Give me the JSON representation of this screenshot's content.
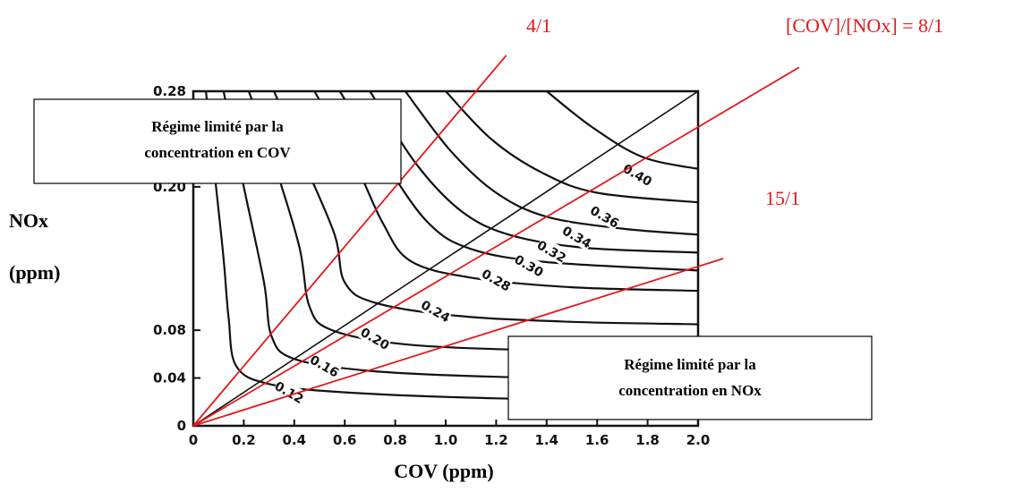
{
  "chart_data": {
    "type": "contour",
    "xlabel": "COV (ppm)",
    "ylabel_line1": "NOx",
    "ylabel_line2": "(ppm)",
    "xlim": [
      0,
      2.0
    ],
    "ylim": [
      0,
      0.28
    ],
    "x_ticks": [
      "0",
      "0.2",
      "0.4",
      "0.6",
      "0.8",
      "1.0",
      "1.2",
      "1.4",
      "1.6",
      "1.8",
      "2.0"
    ],
    "y_ticks": [
      {
        "value": 0,
        "label": "0"
      },
      {
        "value": 0.04,
        "label": "0.04"
      },
      {
        "value": 0.08,
        "label": "0.08"
      },
      {
        "value": 0.2,
        "label": "0.20"
      },
      {
        "value": 0.28,
        "label": "0.28"
      }
    ],
    "contours": [
      {
        "level": 0.12,
        "label": "0.12",
        "label_at": [
          0.38,
          0.028
        ],
        "points": [
          [
            0.05,
            0.28
          ],
          [
            0.09,
            0.2
          ],
          [
            0.12,
            0.14
          ],
          [
            0.14,
            0.09
          ],
          [
            0.17,
            0.05
          ],
          [
            0.3,
            0.035
          ],
          [
            0.6,
            0.028
          ],
          [
            1.2,
            0.023
          ],
          [
            2.0,
            0.021
          ]
        ]
      },
      {
        "level": 0.16,
        "label": "0.16",
        "label_at": [
          0.52,
          0.05
        ],
        "points": [
          [
            0.12,
            0.28
          ],
          [
            0.2,
            0.2
          ],
          [
            0.28,
            0.12
          ],
          [
            0.31,
            0.075
          ],
          [
            0.4,
            0.056
          ],
          [
            0.7,
            0.046
          ],
          [
            1.2,
            0.041
          ],
          [
            2.0,
            0.038
          ]
        ]
      },
      {
        "level": 0.2,
        "label": "0.20",
        "label_at": [
          0.72,
          0.073
        ],
        "points": [
          [
            0.22,
            0.28
          ],
          [
            0.32,
            0.22
          ],
          [
            0.42,
            0.15
          ],
          [
            0.46,
            0.1
          ],
          [
            0.55,
            0.08
          ],
          [
            0.85,
            0.068
          ],
          [
            1.4,
            0.063
          ],
          [
            2.0,
            0.061
          ]
        ]
      },
      {
        "level": 0.24,
        "label": "0.24",
        "label_at": [
          0.96,
          0.096
        ],
        "points": [
          [
            0.32,
            0.28
          ],
          [
            0.44,
            0.22
          ],
          [
            0.56,
            0.16
          ],
          [
            0.6,
            0.12
          ],
          [
            0.72,
            0.103
          ],
          [
            1.05,
            0.092
          ],
          [
            1.5,
            0.087
          ],
          [
            2.0,
            0.085
          ]
        ]
      },
      {
        "level": 0.28,
        "label": "0.28",
        "label_at": [
          1.2,
          0.122
        ],
        "points": [
          [
            0.48,
            0.28
          ],
          [
            0.64,
            0.22
          ],
          [
            0.75,
            0.17
          ],
          [
            0.86,
            0.138
          ],
          [
            1.1,
            0.124
          ],
          [
            1.5,
            0.116
          ],
          [
            2.0,
            0.113
          ]
        ]
      },
      {
        "level": 0.3,
        "label": "0.30",
        "label_at": [
          1.33,
          0.134
        ],
        "points": [
          [
            0.58,
            0.28
          ],
          [
            0.76,
            0.22
          ],
          [
            0.93,
            0.17
          ],
          [
            1.1,
            0.148
          ],
          [
            1.4,
            0.137
          ],
          [
            2.0,
            0.13
          ]
        ]
      },
      {
        "level": 0.32,
        "label": "0.32",
        "label_at": [
          1.42,
          0.146
        ],
        "points": [
          [
            0.7,
            0.28
          ],
          [
            0.88,
            0.22
          ],
          [
            1.06,
            0.18
          ],
          [
            1.25,
            0.16
          ],
          [
            1.55,
            0.149
          ],
          [
            2.0,
            0.145
          ]
        ]
      },
      {
        "level": 0.34,
        "label": "0.34",
        "label_at": [
          1.52,
          0.158
        ],
        "points": [
          [
            0.84,
            0.28
          ],
          [
            1.02,
            0.23
          ],
          [
            1.2,
            0.195
          ],
          [
            1.4,
            0.175
          ],
          [
            1.7,
            0.165
          ],
          [
            2.0,
            0.16
          ]
        ]
      },
      {
        "level": 0.36,
        "label": "0.36",
        "label_at": [
          1.63,
          0.175
        ],
        "points": [
          [
            1.0,
            0.28
          ],
          [
            1.18,
            0.24
          ],
          [
            1.38,
            0.212
          ],
          [
            1.6,
            0.195
          ],
          [
            2.0,
            0.187
          ]
        ]
      },
      {
        "level": 0.4,
        "label": "0.40",
        "label_at": [
          1.76,
          0.21
        ],
        "points": [
          [
            1.4,
            0.28
          ],
          [
            1.58,
            0.25
          ],
          [
            1.78,
            0.225
          ],
          [
            2.0,
            0.215
          ]
        ]
      }
    ],
    "ratio_lines": [
      {
        "label": "4/1",
        "points": [
          [
            0,
            0
          ],
          [
            1.24,
            0.31
          ]
        ]
      },
      {
        "label": "[COV]/[NOx] = 8/1",
        "points": [
          [
            0,
            0
          ],
          [
            2.4,
            0.3
          ]
        ]
      },
      {
        "label": "15/1",
        "points": [
          [
            0,
            0
          ],
          [
            2.1,
            0.14
          ]
        ]
      }
    ],
    "annotations": {
      "top_left_box": {
        "line1": "Régime limité par la",
        "line2": "concentration en COV"
      },
      "bottom_right_box": {
        "line1": "Régime limité par la",
        "line2": "concentration en  NOx"
      }
    },
    "colors": {
      "ratio_lines": "#e31a1c",
      "contours": "#111111",
      "frame": "#111111"
    }
  }
}
